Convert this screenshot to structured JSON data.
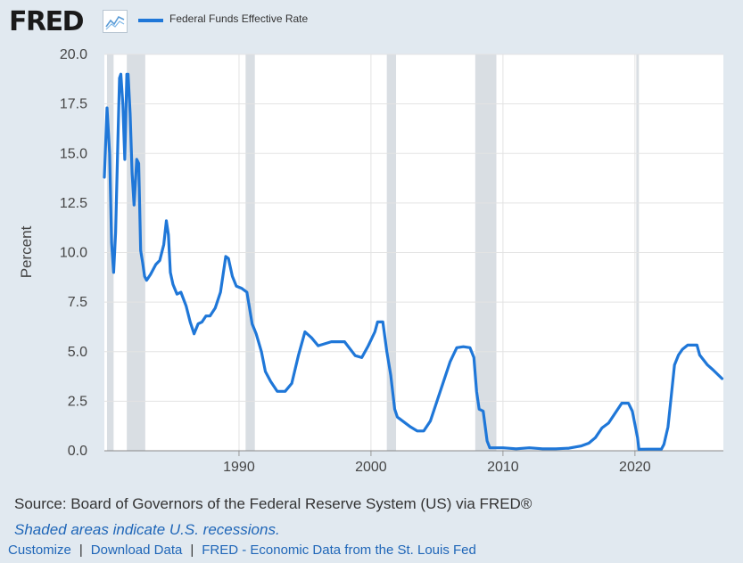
{
  "brand": {
    "logo_text": "FRED",
    "graph_icon": "line-graph-icon"
  },
  "chart_data": {
    "type": "line",
    "title": "",
    "xlabel": "",
    "ylabel": "Percent",
    "xlim": [
      1979.8,
      2026.7
    ],
    "ylim": [
      0,
      20
    ],
    "yticks": [
      "0.0",
      "2.5",
      "5.0",
      "7.5",
      "10.0",
      "12.5",
      "15.0",
      "17.5",
      "20.0"
    ],
    "xticks": [
      "1990",
      "2000",
      "2010",
      "2020"
    ],
    "grid": true,
    "legend_placement": "top",
    "recessions": [
      [
        1980.0,
        1980.5
      ],
      [
        1981.5,
        1982.9
      ],
      [
        1990.5,
        1991.2
      ],
      [
        2001.2,
        2001.9
      ],
      [
        2007.9,
        2009.5
      ],
      [
        2020.1,
        2020.3
      ]
    ],
    "series": [
      {
        "name": "Federal Funds Effective Rate",
        "color": "#1f77d8",
        "x": [
          1979.8,
          1980.0,
          1980.2,
          1980.35,
          1980.5,
          1980.65,
          1980.8,
          1980.95,
          1981.05,
          1981.2,
          1981.35,
          1981.5,
          1981.6,
          1981.75,
          1981.9,
          1982.05,
          1982.25,
          1982.4,
          1982.55,
          1982.7,
          1982.85,
          1983.0,
          1983.3,
          1983.7,
          1984.0,
          1984.3,
          1984.5,
          1984.65,
          1984.8,
          1985.0,
          1985.3,
          1985.6,
          1986.0,
          1986.3,
          1986.6,
          1986.9,
          1987.2,
          1987.5,
          1987.8,
          1988.2,
          1988.6,
          1989.0,
          1989.2,
          1989.5,
          1989.8,
          1990.2,
          1990.6,
          1991.0,
          1991.3,
          1991.7,
          1992.0,
          1992.4,
          1992.9,
          1993.5,
          1994.0,
          1994.5,
          1995.0,
          1995.5,
          1996.0,
          1997.0,
          1998.0,
          1998.8,
          1999.3,
          1999.8,
          2000.3,
          2000.5,
          2000.9,
          2001.2,
          2001.5,
          2001.8,
          2002.0,
          2003.0,
          2003.5,
          2004.0,
          2004.5,
          2005.0,
          2005.5,
          2006.0,
          2006.5,
          2007.0,
          2007.5,
          2007.8,
          2008.0,
          2008.2,
          2008.5,
          2008.8,
          2009.0,
          2010.0,
          2011.0,
          2012.0,
          2013.0,
          2014.0,
          2015.0,
          2015.9,
          2016.5,
          2017.0,
          2017.5,
          2018.0,
          2018.5,
          2019.0,
          2019.5,
          2019.8,
          2020.2,
          2020.3,
          2021.0,
          2022.0,
          2022.2,
          2022.5,
          2022.8,
          2023.0,
          2023.3,
          2023.6,
          2024.0,
          2024.5,
          2024.7,
          2024.9,
          2025.5,
          2025.9,
          2026.6
        ],
        "values": [
          13.8,
          17.3,
          15.0,
          10.5,
          9.0,
          11.0,
          15.0,
          18.8,
          19.0,
          17.5,
          14.7,
          19.0,
          19.0,
          17.0,
          14.0,
          12.4,
          14.7,
          14.5,
          10.1,
          9.5,
          8.8,
          8.6,
          8.9,
          9.4,
          9.6,
          10.4,
          11.6,
          10.9,
          9.0,
          8.4,
          7.9,
          8.0,
          7.3,
          6.5,
          5.9,
          6.4,
          6.5,
          6.8,
          6.8,
          7.2,
          8.0,
          9.8,
          9.7,
          8.8,
          8.3,
          8.2,
          8.0,
          6.4,
          5.9,
          5.0,
          4.0,
          3.5,
          3.0,
          3.0,
          3.4,
          4.8,
          6.0,
          5.7,
          5.3,
          5.5,
          5.5,
          4.8,
          4.7,
          5.3,
          6.0,
          6.5,
          6.5,
          5.0,
          3.8,
          2.1,
          1.7,
          1.2,
          1.0,
          1.0,
          1.5,
          2.5,
          3.5,
          4.5,
          5.2,
          5.25,
          5.2,
          4.7,
          3.0,
          2.1,
          2.0,
          0.5,
          0.15,
          0.15,
          0.1,
          0.15,
          0.1,
          0.1,
          0.13,
          0.24,
          0.38,
          0.66,
          1.15,
          1.4,
          1.9,
          2.4,
          2.4,
          2.0,
          0.65,
          0.07,
          0.08,
          0.08,
          0.33,
          1.2,
          3.08,
          4.33,
          4.83,
          5.12,
          5.33,
          5.33,
          5.33,
          4.83,
          4.33,
          4.09,
          3.64
        ]
      }
    ]
  },
  "footer": {
    "source": "Source: Board of Governors of the Federal Reserve System (US) via FRED®",
    "shaded_note": "Shaded areas indicate U.S. recessions.",
    "links": {
      "customize": "Customize",
      "sep": "|",
      "download": "Download Data",
      "fred": "FRED - Economic Data from the St. Louis Fed"
    }
  }
}
